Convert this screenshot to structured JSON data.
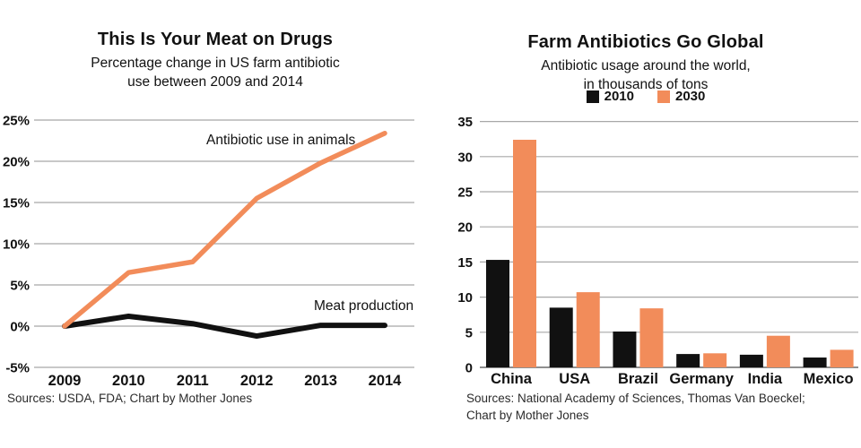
{
  "page": {
    "background": "#ffffff",
    "accent_orange": "#F28C5A",
    "accent_black": "#111111",
    "gridline_color": "#a8a8a8"
  },
  "charts": {
    "left": {
      "title": "This Is Your Meat on Drugs",
      "subtitle_lines": [
        "Percentage change in US farm antibiotic",
        "use between 2009 and 2014"
      ],
      "source": "Sources: USDA, FDA; Chart by Mother Jones"
    },
    "right": {
      "title": "Farm Antibiotics Go Global",
      "subtitle_lines": [
        "Antibiotic usage around the world,",
        "in thousands of tons"
      ],
      "legend": {
        "item1": "2010",
        "item2": "2030"
      },
      "source_lines": [
        "Sources: National Academy of Sciences, Thomas Van Boeckel;",
        "Chart by Mother Jones"
      ]
    }
  },
  "chart_data": [
    {
      "type": "line",
      "title": "This Is Your Meat on Drugs",
      "subtitle": "Percentage change in US farm antibiotic use between 2009 and 2014",
      "x": [
        2009,
        2010,
        2011,
        2012,
        2013,
        2014
      ],
      "series": [
        {
          "name": "Antibiotic use in animals",
          "color": "#F28C5A",
          "values": [
            0,
            6.5,
            7.8,
            15.5,
            19.8,
            23.4
          ]
        },
        {
          "name": "Meat production",
          "color": "#111111",
          "values": [
            0,
            1.2,
            0.3,
            -1.2,
            0.1,
            0.1
          ]
        }
      ],
      "ylim": [
        -5,
        25
      ],
      "ytick_step": 5,
      "ytick_suffix": "%",
      "grid": true,
      "legend_position": "inline-labels",
      "source": "Sources: USDA, FDA; Chart by Mother Jones"
    },
    {
      "type": "bar",
      "title": "Farm Antibiotics Go Global",
      "subtitle": "Antibiotic usage around the world, in thousands of tons",
      "categories": [
        "China",
        "USA",
        "Brazil",
        "Germany",
        "India",
        "Mexico"
      ],
      "series": [
        {
          "name": "2010",
          "color": "#111111",
          "values": [
            15.3,
            8.5,
            5.1,
            1.9,
            1.8,
            1.4
          ]
        },
        {
          "name": "2030",
          "color": "#F28C5A",
          "values": [
            32.4,
            10.7,
            8.4,
            2.0,
            4.5,
            2.5
          ]
        }
      ],
      "ylim": [
        0,
        35
      ],
      "ytick_step": 5,
      "grid": true,
      "legend_position": "top-center",
      "source": "Sources: National Academy of Sciences, Thomas Van Boeckel; Chart by Mother Jones"
    }
  ]
}
